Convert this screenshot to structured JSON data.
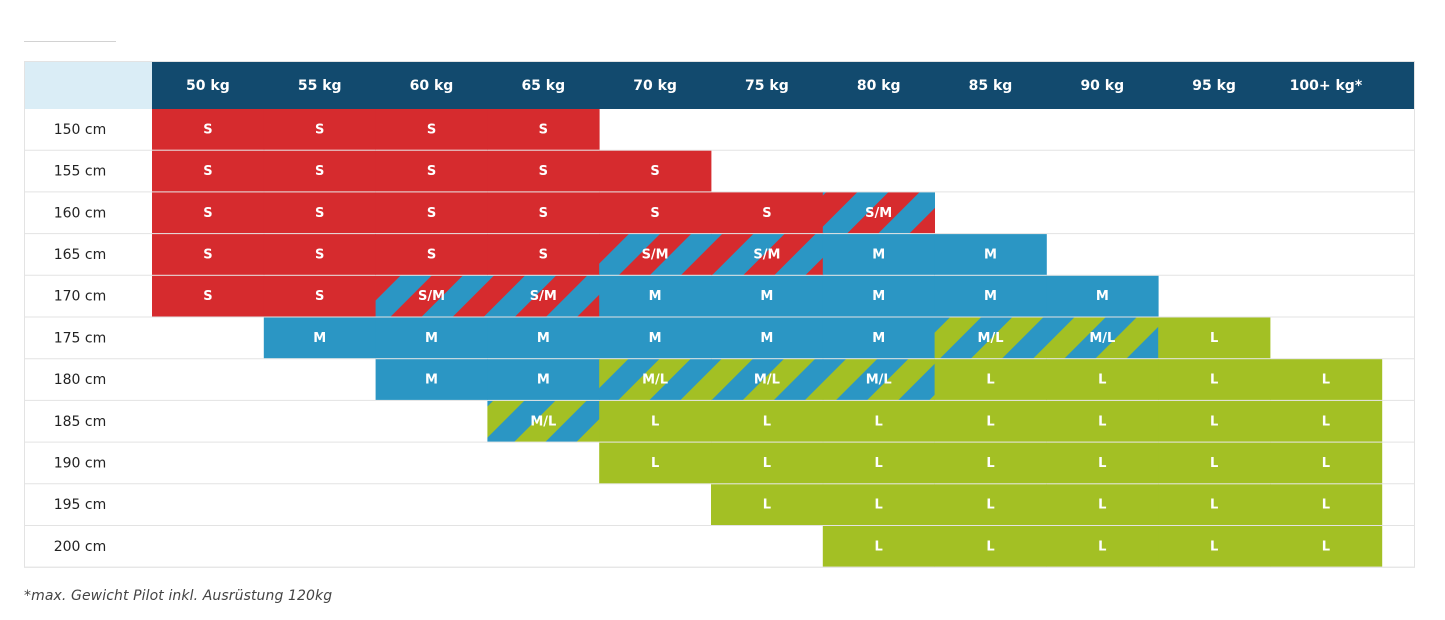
{
  "chart_data": {
    "type": "table",
    "title": "",
    "corner_label": "",
    "columns": [
      "50 kg",
      "55 kg",
      "60 kg",
      "65 kg",
      "70 kg",
      "75 kg",
      "80 kg",
      "85 kg",
      "90 kg",
      "95 kg",
      "100+ kg*"
    ],
    "rows": [
      {
        "label": "150 cm",
        "cells": [
          "S",
          "S",
          "S",
          "S",
          "",
          "",
          "",
          "",
          "",
          "",
          ""
        ]
      },
      {
        "label": "155 cm",
        "cells": [
          "S",
          "S",
          "S",
          "S",
          "S",
          "",
          "",
          "",
          "",
          "",
          ""
        ]
      },
      {
        "label": "160 cm",
        "cells": [
          "S",
          "S",
          "S",
          "S",
          "S",
          "S",
          "S/M",
          "",
          "",
          "",
          ""
        ]
      },
      {
        "label": "165 cm",
        "cells": [
          "S",
          "S",
          "S",
          "S",
          "S/M",
          "S/M",
          "M",
          "M",
          "",
          "",
          ""
        ]
      },
      {
        "label": "170 cm",
        "cells": [
          "S",
          "S",
          "S/M",
          "S/M",
          "M",
          "M",
          "M",
          "M",
          "M",
          "",
          ""
        ]
      },
      {
        "label": "175 cm",
        "cells": [
          "",
          "M",
          "M",
          "M",
          "M",
          "M",
          "M",
          "M/L",
          "M/L",
          "L",
          ""
        ]
      },
      {
        "label": "180 cm",
        "cells": [
          "",
          "",
          "M",
          "M",
          "M/L",
          "M/L",
          "M/L",
          "L",
          "L",
          "L",
          "L"
        ]
      },
      {
        "label": "185 cm",
        "cells": [
          "",
          "",
          "",
          "M/L",
          "L",
          "L",
          "L",
          "L",
          "L",
          "L",
          "L"
        ]
      },
      {
        "label": "190 cm",
        "cells": [
          "",
          "",
          "",
          "",
          "L",
          "L",
          "L",
          "L",
          "L",
          "L",
          "L"
        ]
      },
      {
        "label": "195 cm",
        "cells": [
          "",
          "",
          "",
          "",
          "",
          "L",
          "L",
          "L",
          "L",
          "L",
          "L"
        ]
      },
      {
        "label": "200 cm",
        "cells": [
          "",
          "",
          "",
          "",
          "",
          "",
          "L",
          "L",
          "L",
          "L",
          "L"
        ]
      }
    ],
    "size_colors": {
      "S": "#d62b2e",
      "M": "#2b96c4",
      "L": "#a3c024"
    },
    "header_color": "#124a6e",
    "corner_color": "#daedf6"
  },
  "footnote": "*max. Gewicht Pilot inkl. Ausrüstung 120kg"
}
